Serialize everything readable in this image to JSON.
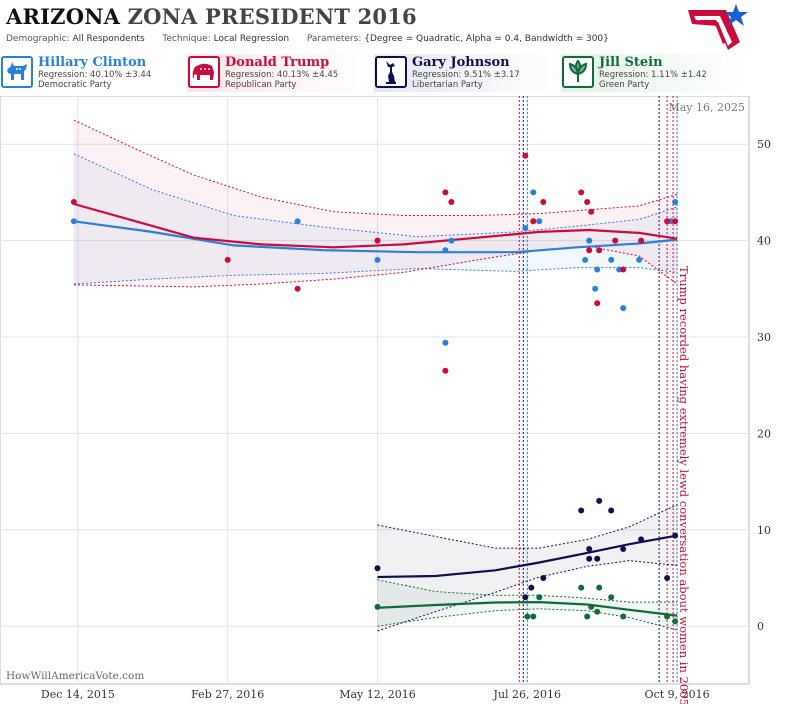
{
  "header": {
    "state": "ARIZONA",
    "title_rest": "ZONA PRESIDENT 2016",
    "demographic_label": "Demographic:",
    "demographic_value": "All Respondents",
    "technique_label": "Technique:",
    "technique_value": "Local Regression",
    "parameters_label": "Parameters:",
    "parameters_value": "{Degree = Quadratic, Alpha = 0.4, Bandwidth = 300}"
  },
  "candidates": [
    {
      "name": "Hillary Clinton",
      "regression": "Regression: 40.10% ±3.44",
      "party": "Democratic Party",
      "color": "#2a7fd8",
      "icon": "donkey-icon"
    },
    {
      "name": "Donald Trump",
      "regression": "Regression: 40.13% ±4.45",
      "party": "Republican Party",
      "color": "#cc0a3c",
      "icon": "elephant-icon"
    },
    {
      "name": "Gary Johnson",
      "regression": "Regression: 9.51% ±3.17",
      "party": "Libertarian Party",
      "color": "#12104a",
      "icon": "liberty-icon"
    },
    {
      "name": "Jill Stein",
      "regression": "Regression: 1.11% ±1.42",
      "party": "Green Party",
      "color": "#116a3c",
      "icon": "leaf-icon"
    }
  ],
  "chart_data": {
    "type": "scatter",
    "date_label": "May 16, 2025",
    "watermark": "HowWillAmericaVote.com",
    "annotation": "Trump recorded having extremely lewd conversation about women in 2005",
    "annotation_date": "2016-10-07",
    "x_ticks": [
      {
        "date": "2015-12-14",
        "label": "Dec 14, 2015"
      },
      {
        "date": "2016-02-27",
        "label": "Feb 27, 2016"
      },
      {
        "date": "2016-05-12",
        "label": "May 12, 2016"
      },
      {
        "date": "2016-07-26",
        "label": "Jul 26, 2016"
      },
      {
        "date": "2016-10-09",
        "label": "Oct 9, 2016"
      }
    ],
    "y_ticks": [
      0,
      10,
      20,
      30,
      40,
      50
    ],
    "ylim": [
      -6,
      55
    ],
    "xlim": [
      "2015-11-05",
      "2016-11-14"
    ],
    "grid": true,
    "event_lines": [
      {
        "date": "2016-07-22",
        "color": "#cc0a3c"
      },
      {
        "date": "2016-07-24",
        "color": "#12104a"
      },
      {
        "date": "2016-07-26",
        "color": "#2a7fd8"
      },
      {
        "date": "2016-09-30",
        "color": "#12104a"
      },
      {
        "date": "2016-10-04",
        "color": "#cc0a3c"
      },
      {
        "date": "2016-10-07",
        "color": "#cc0a3c"
      },
      {
        "date": "2016-10-09",
        "color": "#2a7fd8"
      }
    ],
    "series": [
      {
        "name": "Hillary Clinton",
        "color": "#2a7fd8",
        "points": [
          [
            "2015-12-12",
            42
          ],
          [
            "2016-04-02",
            42
          ],
          [
            "2016-05-12",
            38
          ],
          [
            "2016-06-15",
            39
          ],
          [
            "2016-06-15",
            29.4
          ],
          [
            "2016-06-18",
            40
          ],
          [
            "2016-07-25",
            41.3
          ],
          [
            "2016-07-29",
            45
          ],
          [
            "2016-08-01",
            42
          ],
          [
            "2016-08-24",
            38
          ],
          [
            "2016-08-26",
            40
          ],
          [
            "2016-08-29",
            35
          ],
          [
            "2016-08-30",
            37
          ],
          [
            "2016-08-31",
            39
          ],
          [
            "2016-09-06",
            38
          ],
          [
            "2016-09-10",
            37
          ],
          [
            "2016-09-12",
            33
          ],
          [
            "2016-09-20",
            38
          ],
          [
            "2016-10-06",
            42
          ],
          [
            "2016-10-08",
            44
          ]
        ],
        "trend": [
          [
            "2015-12-12",
            42
          ],
          [
            "2016-01-20",
            40.9
          ],
          [
            "2016-03-01",
            39.5
          ],
          [
            "2016-04-15",
            39
          ],
          [
            "2016-06-01",
            38.8
          ],
          [
            "2016-07-20",
            38.8
          ],
          [
            "2016-08-20",
            39.3
          ],
          [
            "2016-09-20",
            39.7
          ],
          [
            "2016-10-09",
            40.1
          ]
        ],
        "band_upper": [
          [
            "2015-12-12",
            49
          ],
          [
            "2016-01-20",
            45.3
          ],
          [
            "2016-03-01",
            42.6
          ],
          [
            "2016-04-15",
            41.4
          ],
          [
            "2016-06-01",
            40.4
          ],
          [
            "2016-07-20",
            40.9
          ],
          [
            "2016-08-20",
            41.5
          ],
          [
            "2016-09-20",
            42.2
          ],
          [
            "2016-10-09",
            43.5
          ]
        ],
        "band_lower": [
          [
            "2015-12-12",
            35.5
          ],
          [
            "2016-01-20",
            36
          ],
          [
            "2016-03-01",
            36.4
          ],
          [
            "2016-04-15",
            36.6
          ],
          [
            "2016-06-01",
            37.1
          ],
          [
            "2016-07-20",
            36.8
          ],
          [
            "2016-08-20",
            37.2
          ],
          [
            "2016-09-20",
            37.2
          ],
          [
            "2016-10-09",
            36.7
          ]
        ]
      },
      {
        "name": "Donald Trump",
        "color": "#cc0a3c",
        "points": [
          [
            "2015-12-12",
            44
          ],
          [
            "2016-02-27",
            38
          ],
          [
            "2016-04-02",
            35
          ],
          [
            "2016-05-12",
            40
          ],
          [
            "2016-06-15",
            45
          ],
          [
            "2016-06-18",
            44
          ],
          [
            "2016-06-15",
            26.5
          ],
          [
            "2016-07-25",
            48.8
          ],
          [
            "2016-07-29",
            42
          ],
          [
            "2016-08-03",
            44
          ],
          [
            "2016-08-22",
            45
          ],
          [
            "2016-08-25",
            44
          ],
          [
            "2016-08-27",
            43
          ],
          [
            "2016-08-26",
            39
          ],
          [
            "2016-08-30",
            33.5
          ],
          [
            "2016-08-31",
            39
          ],
          [
            "2016-09-08",
            40
          ],
          [
            "2016-09-12",
            37
          ],
          [
            "2016-09-21",
            40
          ],
          [
            "2016-10-04",
            42
          ],
          [
            "2016-10-08",
            42
          ]
        ],
        "trend": [
          [
            "2015-12-12",
            43.8
          ],
          [
            "2016-01-12",
            42
          ],
          [
            "2016-02-10",
            40.3
          ],
          [
            "2016-03-15",
            39.6
          ],
          [
            "2016-04-20",
            39.3
          ],
          [
            "2016-05-25",
            39.6
          ],
          [
            "2016-07-01",
            40.3
          ],
          [
            "2016-08-01",
            40.9
          ],
          [
            "2016-08-26",
            41.1
          ],
          [
            "2016-09-20",
            40.8
          ],
          [
            "2016-10-09",
            40.2
          ]
        ],
        "band_upper": [
          [
            "2015-12-12",
            52.5
          ],
          [
            "2016-01-12",
            49.5
          ],
          [
            "2016-02-10",
            46.8
          ],
          [
            "2016-03-15",
            44.5
          ],
          [
            "2016-04-20",
            43
          ],
          [
            "2016-05-25",
            42.6
          ],
          [
            "2016-07-01",
            42.6
          ],
          [
            "2016-08-01",
            42.8
          ],
          [
            "2016-08-26",
            43.2
          ],
          [
            "2016-09-20",
            43.6
          ],
          [
            "2016-10-09",
            44.8
          ]
        ],
        "band_lower": [
          [
            "2015-12-12",
            35.4
          ],
          [
            "2016-01-12",
            35.3
          ],
          [
            "2016-02-10",
            35.2
          ],
          [
            "2016-03-15",
            35.5
          ],
          [
            "2016-04-20",
            36
          ],
          [
            "2016-05-25",
            36.7
          ],
          [
            "2016-07-01",
            38
          ],
          [
            "2016-08-01",
            39
          ],
          [
            "2016-08-26",
            39.4
          ],
          [
            "2016-09-20",
            38.4
          ],
          [
            "2016-10-09",
            35.5
          ]
        ]
      },
      {
        "name": "Gary Johnson",
        "color": "#12104a",
        "points": [
          [
            "2016-05-12",
            6
          ],
          [
            "2016-07-25",
            3
          ],
          [
            "2016-07-28",
            4
          ],
          [
            "2016-08-03",
            5
          ],
          [
            "2016-08-22",
            12
          ],
          [
            "2016-08-26",
            8
          ],
          [
            "2016-08-26",
            7
          ],
          [
            "2016-08-30",
            7
          ],
          [
            "2016-08-31",
            13
          ],
          [
            "2016-09-06",
            12
          ],
          [
            "2016-09-12",
            8
          ],
          [
            "2016-09-21",
            9
          ],
          [
            "2016-10-04",
            5
          ],
          [
            "2016-10-08",
            9.4
          ]
        ],
        "trend": [
          [
            "2016-05-12",
            5.1
          ],
          [
            "2016-06-10",
            5.2
          ],
          [
            "2016-07-10",
            5.8
          ],
          [
            "2016-08-01",
            6.6
          ],
          [
            "2016-08-25",
            7.6
          ],
          [
            "2016-09-15",
            8.5
          ],
          [
            "2016-10-09",
            9.4
          ]
        ],
        "band_upper": [
          [
            "2016-05-12",
            10.5
          ],
          [
            "2016-06-10",
            9.3
          ],
          [
            "2016-07-10",
            8.1
          ],
          [
            "2016-08-01",
            8.1
          ],
          [
            "2016-08-25",
            9
          ],
          [
            "2016-09-15",
            10.3
          ],
          [
            "2016-10-09",
            12.6
          ]
        ],
        "band_lower": [
          [
            "2016-05-12",
            -0.5
          ],
          [
            "2016-06-10",
            1.5
          ],
          [
            "2016-07-10",
            3.5
          ],
          [
            "2016-08-01",
            5.1
          ],
          [
            "2016-08-25",
            6.2
          ],
          [
            "2016-09-15",
            6.8
          ],
          [
            "2016-10-09",
            6.3
          ]
        ]
      },
      {
        "name": "Jill Stein",
        "color": "#116a3c",
        "points": [
          [
            "2016-05-12",
            2
          ],
          [
            "2016-07-26",
            1
          ],
          [
            "2016-07-29",
            1
          ],
          [
            "2016-08-01",
            3
          ],
          [
            "2016-08-22",
            4
          ],
          [
            "2016-08-25",
            1
          ],
          [
            "2016-08-27",
            2
          ],
          [
            "2016-08-30",
            1.5
          ],
          [
            "2016-08-31",
            4
          ],
          [
            "2016-09-06",
            3
          ],
          [
            "2016-09-12",
            1
          ],
          [
            "2016-10-04",
            1
          ],
          [
            "2016-10-08",
            0.5
          ]
        ],
        "trend": [
          [
            "2016-05-12",
            1.9
          ],
          [
            "2016-06-10",
            2.2
          ],
          [
            "2016-07-10",
            2.45
          ],
          [
            "2016-08-01",
            2.5
          ],
          [
            "2016-08-25",
            2.25
          ],
          [
            "2016-09-15",
            1.7
          ],
          [
            "2016-10-09",
            1.1
          ]
        ],
        "band_upper": [
          [
            "2016-05-12",
            4.8
          ],
          [
            "2016-06-10",
            3.6
          ],
          [
            "2016-07-10",
            3.2
          ],
          [
            "2016-08-01",
            3.2
          ],
          [
            "2016-08-25",
            2.9
          ],
          [
            "2016-09-15",
            2.5
          ],
          [
            "2016-10-09",
            2.5
          ]
        ],
        "band_lower": [
          [
            "2016-05-12",
            0
          ],
          [
            "2016-06-10",
            0.9
          ],
          [
            "2016-07-10",
            1.6
          ],
          [
            "2016-08-01",
            1.8
          ],
          [
            "2016-08-25",
            1.6
          ],
          [
            "2016-09-15",
            0.9
          ],
          [
            "2016-10-09",
            -0.4
          ]
        ]
      }
    ]
  }
}
